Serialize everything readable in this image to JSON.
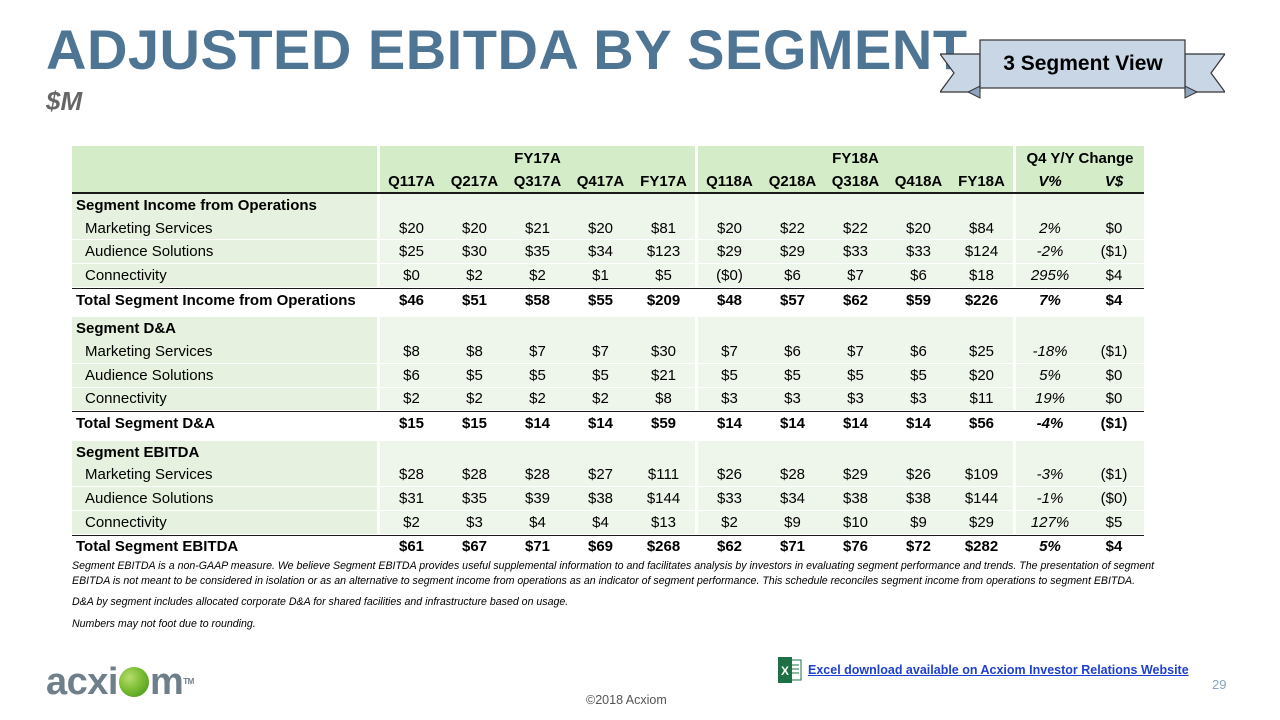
{
  "title": "ADJUSTED EBITDA BY SEGMENT",
  "subtitle": "$M",
  "ribbon_label": "3 Segment View",
  "table": {
    "group_headers": {
      "fy17": "FY17A",
      "fy18": "FY18A",
      "change": "Q4 Y/Y Change"
    },
    "columns": [
      "Q117A",
      "Q217A",
      "Q317A",
      "Q417A",
      "FY17A",
      "Q118A",
      "Q218A",
      "Q318A",
      "Q418A",
      "FY18A",
      "V%",
      "V$"
    ],
    "sections": [
      {
        "title": "Segment Income from Operations",
        "rows": [
          {
            "label": "Marketing Services",
            "fy17": [
              "$20",
              "$20",
              "$21",
              "$20",
              "$81"
            ],
            "fy18": [
              "$20",
              "$22",
              "$22",
              "$20",
              "$84"
            ],
            "chg": [
              "2%",
              "$0"
            ]
          },
          {
            "label": "Audience Solutions",
            "fy17": [
              "$25",
              "$30",
              "$35",
              "$34",
              "$123"
            ],
            "fy18": [
              "$29",
              "$29",
              "$33",
              "$33",
              "$124"
            ],
            "chg": [
              "-2%",
              "($1)"
            ]
          },
          {
            "label": "Connectivity",
            "fy17": [
              "$0",
              "$2",
              "$2",
              "$1",
              "$5"
            ],
            "fy18": [
              "($0)",
              "$6",
              "$7",
              "$6",
              "$18"
            ],
            "chg": [
              "295%",
              "$4"
            ]
          }
        ],
        "total": {
          "label": "Total Segment Income from Operations",
          "fy17": [
            "$46",
            "$51",
            "$58",
            "$55",
            "$209"
          ],
          "fy18": [
            "$48",
            "$57",
            "$62",
            "$59",
            "$226"
          ],
          "chg": [
            "7%",
            "$4"
          ]
        }
      },
      {
        "title": "Segment D&A",
        "rows": [
          {
            "label": "Marketing Services",
            "fy17": [
              "$8",
              "$8",
              "$7",
              "$7",
              "$30"
            ],
            "fy18": [
              "$7",
              "$6",
              "$7",
              "$6",
              "$25"
            ],
            "chg": [
              "-18%",
              "($1)"
            ]
          },
          {
            "label": "Audience Solutions",
            "fy17": [
              "$6",
              "$5",
              "$5",
              "$5",
              "$21"
            ],
            "fy18": [
              "$5",
              "$5",
              "$5",
              "$5",
              "$20"
            ],
            "chg": [
              "5%",
              "$0"
            ]
          },
          {
            "label": "Connectivity",
            "fy17": [
              "$2",
              "$2",
              "$2",
              "$2",
              "$8"
            ],
            "fy18": [
              "$3",
              "$3",
              "$3",
              "$3",
              "$11"
            ],
            "chg": [
              "19%",
              "$0"
            ]
          }
        ],
        "total": {
          "label": "Total Segment D&A",
          "fy17": [
            "$15",
            "$15",
            "$14",
            "$14",
            "$59"
          ],
          "fy18": [
            "$14",
            "$14",
            "$14",
            "$14",
            "$56"
          ],
          "chg": [
            "-4%",
            "($1)"
          ]
        }
      },
      {
        "title": "Segment EBITDA",
        "rows": [
          {
            "label": "Marketing Services",
            "fy17": [
              "$28",
              "$28",
              "$28",
              "$27",
              "$111"
            ],
            "fy18": [
              "$26",
              "$28",
              "$29",
              "$26",
              "$109"
            ],
            "chg": [
              "-3%",
              "($1)"
            ]
          },
          {
            "label": "Audience Solutions",
            "fy17": [
              "$31",
              "$35",
              "$39",
              "$38",
              "$144"
            ],
            "fy18": [
              "$33",
              "$34",
              "$38",
              "$38",
              "$144"
            ],
            "chg": [
              "-1%",
              "($0)"
            ]
          },
          {
            "label": "Connectivity",
            "fy17": [
              "$2",
              "$3",
              "$4",
              "$4",
              "$13"
            ],
            "fy18": [
              "$2",
              "$9",
              "$10",
              "$9",
              "$29"
            ],
            "chg": [
              "127%",
              "$5"
            ]
          }
        ],
        "total": {
          "label": "Total Segment EBITDA",
          "fy17": [
            "$61",
            "$67",
            "$71",
            "$69",
            "$268"
          ],
          "fy18": [
            "$62",
            "$71",
            "$76",
            "$72",
            "$282"
          ],
          "chg": [
            "5%",
            "$4"
          ]
        }
      }
    ]
  },
  "notes": [
    "Segment EBITDA is a non-GAAP measure. We believe Segment EBITDA provides useful supplemental information to and facilitates analysis by investors in evaluating segment performance and trends. The presentation of segment EBITDA is not meant to be considered in isolation or as an alternative to segment income from operations as an indicator of segment performance. This schedule reconciles segment income from operations to segment EBITDA.",
    "D&A by segment includes allocated corporate D&A for shared facilities and infrastructure based on usage.",
    "Numbers may not foot due to rounding."
  ],
  "logo": {
    "pre": "acxi",
    "post": "m",
    "tm": "TM"
  },
  "excel_icon_letter": "X",
  "excel_link": "Excel download available on Acxiom Investor Relations Website",
  "page_number": "29",
  "copyright": "©2018 Acxiom",
  "colors": {
    "title": "#4f7594",
    "header_fill": "#d4edc8",
    "cell_fill": "#eef5ea",
    "link": "#1f3fd1",
    "excel_green": "#1d7044"
  }
}
